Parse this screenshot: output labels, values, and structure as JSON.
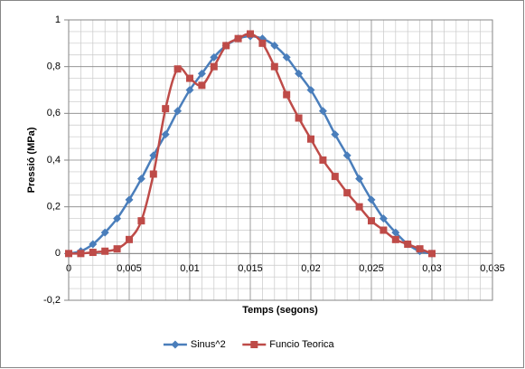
{
  "chart_data": {
    "type": "scatter",
    "x_label": "Temps (segons)",
    "y_label": "Pressió (MPa)",
    "x": [
      0,
      0.001,
      0.002,
      0.003,
      0.004,
      0.005,
      0.006,
      0.007,
      0.008,
      0.009,
      0.01,
      0.011,
      0.012,
      0.013,
      0.014,
      0.015,
      0.016,
      0.017,
      0.018,
      0.019,
      0.02,
      0.021,
      0.022,
      0.023,
      0.024,
      0.025,
      0.026,
      0.027,
      0.028,
      0.029,
      0.03
    ],
    "series": [
      {
        "name": "Sinus^2",
        "color": "#4a7ebb",
        "marker": "diamond",
        "values": [
          0,
          0.01,
          0.04,
          0.09,
          0.15,
          0.23,
          0.32,
          0.42,
          0.51,
          0.61,
          0.7,
          0.77,
          0.84,
          0.89,
          0.92,
          0.93,
          0.92,
          0.89,
          0.84,
          0.77,
          0.7,
          0.61,
          0.51,
          0.42,
          0.32,
          0.23,
          0.15,
          0.09,
          0.04,
          0.01,
          0
        ]
      },
      {
        "name": "Funcio Teorica",
        "color": "#be4b48",
        "marker": "square",
        "values": [
          0,
          0,
          0.005,
          0.01,
          0.02,
          0.06,
          0.14,
          0.34,
          0.62,
          0.79,
          0.75,
          0.72,
          0.8,
          0.89,
          0.92,
          0.94,
          0.9,
          0.8,
          0.68,
          0.58,
          0.49,
          0.4,
          0.33,
          0.26,
          0.2,
          0.14,
          0.1,
          0.06,
          0.04,
          0.02,
          0
        ]
      }
    ],
    "xlim": [
      0,
      0.035
    ],
    "xticks": [
      0,
      {
        "value": 0.005,
        "label": "0,005"
      },
      {
        "value": 0.01,
        "label": "0,01"
      },
      {
        "value": 0.015,
        "label": "0,015"
      },
      {
        "value": 0.02,
        "label": "0,02"
      },
      {
        "value": 0.025,
        "label": "0,025"
      },
      {
        "value": 0.03,
        "label": "0,03"
      },
      {
        "value": 0.035,
        "label": "0,035"
      }
    ],
    "ylim": [
      -0.2,
      1
    ],
    "yticks": [
      {
        "value": -0.2,
        "label": "-0,2"
      },
      0,
      {
        "value": 0.2,
        "label": "0,2"
      },
      {
        "value": 0.4,
        "label": "0,4"
      },
      {
        "value": 0.6,
        "label": "0,6"
      },
      {
        "value": 0.8,
        "label": "0,8"
      },
      1
    ],
    "grid": true,
    "minor_grid": true,
    "smooth": true,
    "legend": "bottom"
  }
}
